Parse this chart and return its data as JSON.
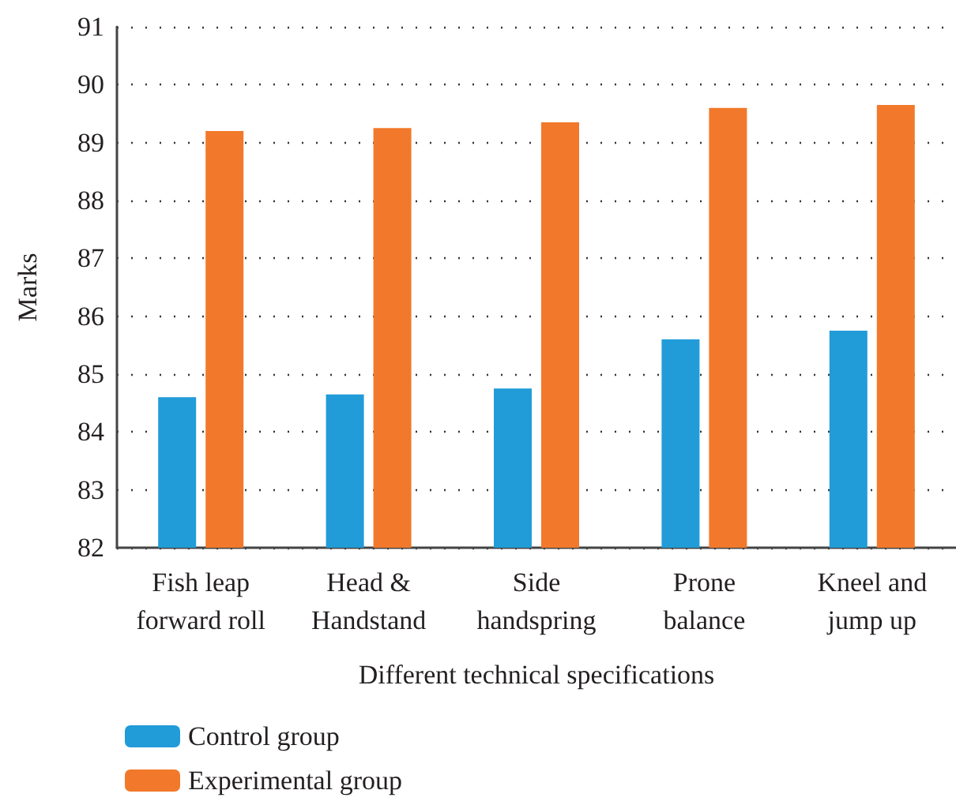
{
  "chart_data": {
    "type": "bar",
    "xlabel": "Different technical specifications",
    "ylabel": "Marks",
    "categories": [
      "Fish leap\nforward roll",
      "Head &\nHandstand",
      "Side\nhandspring",
      "Prone\nbalance",
      "Kneel and\njump up"
    ],
    "series": [
      {
        "name": "Control group",
        "color": "#219cd8",
        "values": [
          84.6,
          84.65,
          84.75,
          85.6,
          85.75
        ]
      },
      {
        "name": "Experimental group",
        "color": "#f2792b",
        "values": [
          89.2,
          89.25,
          89.35,
          89.6,
          89.65
        ]
      }
    ],
    "ylim": [
      82,
      91
    ],
    "yticks": [
      82,
      83,
      84,
      85,
      86,
      87,
      88,
      89,
      90,
      91
    ],
    "grid": "y",
    "legend": "bottom left"
  }
}
